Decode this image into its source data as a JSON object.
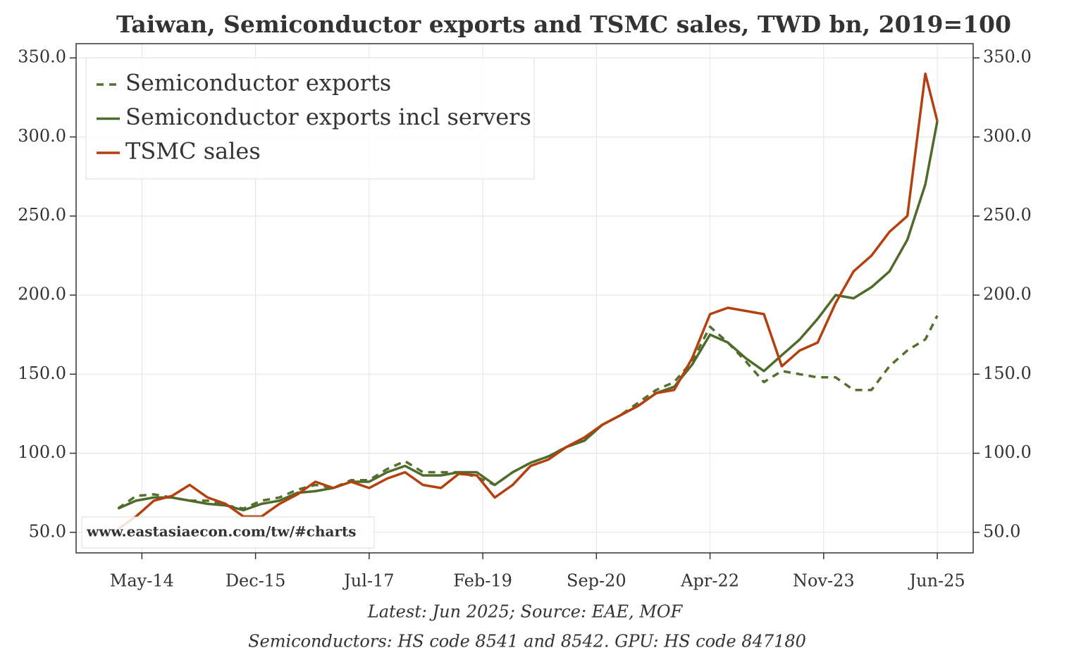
{
  "chart_data": {
    "type": "line",
    "title": "Taiwan, Semiconductor exports and TSMC sales, TWD bn, 2019=100",
    "x": [
      "Jan-14",
      "Apr-14",
      "Jul-14",
      "Oct-14",
      "Jan-15",
      "Apr-15",
      "Jul-15",
      "Oct-15",
      "Jan-16",
      "Apr-16",
      "Jul-16",
      "Oct-16",
      "Jan-17",
      "Apr-17",
      "Jul-17",
      "Oct-17",
      "Jan-18",
      "Apr-18",
      "Jul-18",
      "Oct-18",
      "Jan-19",
      "Apr-19",
      "Jul-19",
      "Oct-19",
      "Jan-20",
      "Apr-20",
      "Jul-20",
      "Oct-20",
      "Jan-21",
      "Apr-21",
      "Jul-21",
      "Oct-21",
      "Jan-22",
      "Apr-22",
      "Jul-22",
      "Oct-22",
      "Jan-23",
      "Apr-23",
      "Jul-23",
      "Oct-23",
      "Jan-24",
      "Apr-24",
      "Jul-24",
      "Oct-24",
      "Jan-25",
      "Apr-25",
      "Jun-25"
    ],
    "series": [
      {
        "name": "Semiconductor exports",
        "color": "#55702e",
        "linestyle": "dashed",
        "values": [
          65,
          73,
          74,
          72,
          70,
          70,
          67,
          65,
          70,
          72,
          77,
          80,
          78,
          83,
          83,
          90,
          95,
          88,
          88,
          88,
          85,
          80,
          88,
          94,
          98,
          104,
          108,
          118,
          124,
          132,
          140,
          145,
          158,
          180,
          170,
          158,
          145,
          152,
          150,
          148,
          148,
          140,
          140,
          155,
          165,
          172,
          187
        ]
      },
      {
        "name": "Semiconductor exports incl servers",
        "color": "#4e6b2a",
        "linestyle": "solid",
        "values": [
          65,
          70,
          72,
          72,
          70,
          68,
          67,
          64,
          68,
          70,
          75,
          76,
          78,
          82,
          82,
          88,
          92,
          86,
          86,
          88,
          88,
          80,
          88,
          94,
          98,
          104,
          108,
          118,
          124,
          130,
          138,
          142,
          156,
          175,
          170,
          160,
          152,
          162,
          172,
          185,
          200,
          198,
          205,
          215,
          235,
          270,
          310
        ]
      },
      {
        "name": "TSMC sales",
        "color": "#b5400f",
        "linestyle": "solid",
        "values": [
          52,
          60,
          70,
          73,
          80,
          72,
          68,
          60,
          60,
          68,
          74,
          82,
          78,
          82,
          78,
          84,
          88,
          80,
          78,
          87,
          86,
          72,
          80,
          92,
          96,
          104,
          110,
          118,
          124,
          130,
          138,
          140,
          160,
          188,
          192,
          190,
          188,
          155,
          165,
          170,
          195,
          215,
          225,
          240,
          250,
          340,
          310
        ]
      }
    ],
    "xlim": [
      "Jun-13",
      "Dec-25"
    ],
    "xticks": [
      "May-14",
      "Dec-15",
      "Jul-17",
      "Feb-19",
      "Sep-20",
      "Apr-22",
      "Nov-23",
      "Jun-25"
    ],
    "ylim": [
      37,
      359
    ],
    "yticks": [
      {
        "value": 50,
        "label": "50.0"
      },
      {
        "value": 100,
        "label": "100.0"
      },
      {
        "value": 150,
        "label": "150.0"
      },
      {
        "value": 200,
        "label": "200.0"
      },
      {
        "value": 250,
        "label": "250.0"
      },
      {
        "value": 300,
        "label": "300.0"
      },
      {
        "value": 350,
        "label": "350.0"
      }
    ],
    "y2lim": [
      37,
      359
    ],
    "y2ticks": [
      {
        "value": 50,
        "label": "50.0"
      },
      {
        "value": 100,
        "label": "100.0"
      },
      {
        "value": 150,
        "label": "150.0"
      },
      {
        "value": 200,
        "label": "200.0"
      },
      {
        "value": 250,
        "label": "250.0"
      },
      {
        "value": 300,
        "label": "300.0"
      },
      {
        "value": 350,
        "label": "350.0"
      }
    ],
    "grid": true,
    "legend": "upper left",
    "watermark": "www.eastasiaecon.com/tw/#charts",
    "notes": [
      "Latest: Jun 2025; Source: EAE, MOF",
      "Semiconductors: HS code 8541 and 8542. GPU: HS code 847180"
    ]
  }
}
